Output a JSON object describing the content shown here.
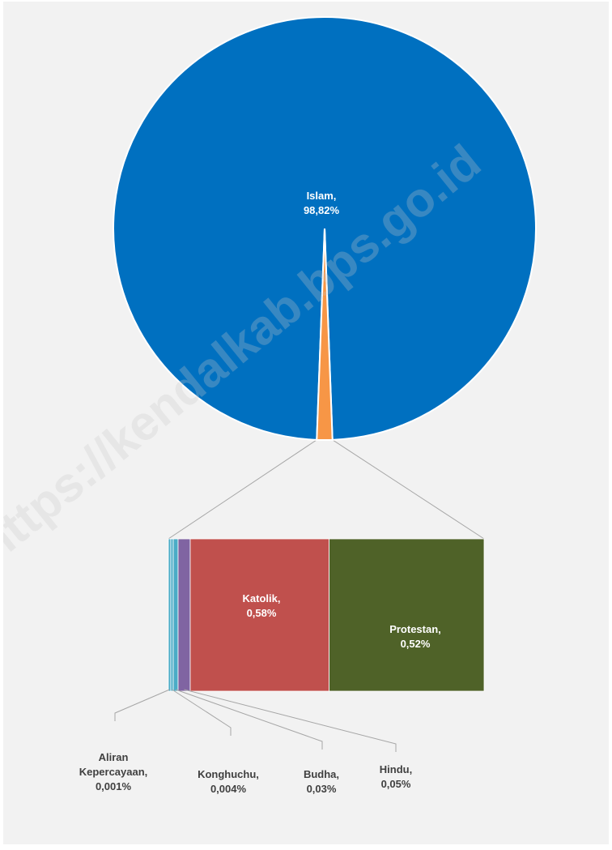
{
  "chart_data": {
    "type": "pie",
    "subtype": "bar-of-pie",
    "slices": [
      {
        "name": "Islam",
        "pct_label": "98,82%",
        "value": 98.82,
        "color": "#0070c0",
        "label_color": "#ffffff"
      },
      {
        "name": "Katolik",
        "pct_label": "0,58%",
        "value": 0.58,
        "color": "#4f6228",
        "label_color": "#ffffff"
      },
      {
        "name": "Protestan",
        "pct_label": "0,52%",
        "value": 0.52,
        "color": "#c0504d",
        "label_color": "#ffffff"
      },
      {
        "name": "Hindu",
        "pct_label": "0,05%",
        "value": 0.05,
        "color": "#8064a2",
        "label_color": "#404040"
      },
      {
        "name": "Budha",
        "pct_label": "0,03%",
        "value": 0.03,
        "color": "#4bacc6",
        "label_color": "#404040"
      },
      {
        "name": "Konghuchu",
        "pct_label": "0,004%",
        "value": 0.004,
        "color": "#4bacc6",
        "label_color": "#404040"
      },
      {
        "name": "Aliran Kepercayaan",
        "pct_label": "0,001%",
        "value": 0.001,
        "color": "#4bacc6",
        "label_color": "#404040"
      }
    ],
    "secondary_color": "#f79646",
    "watermark": "https://kendalkab.bps.go.id",
    "colors": {
      "background": "#f2f2f2",
      "connector": "#a6a6a6",
      "slice_border": "#ffffff"
    }
  }
}
